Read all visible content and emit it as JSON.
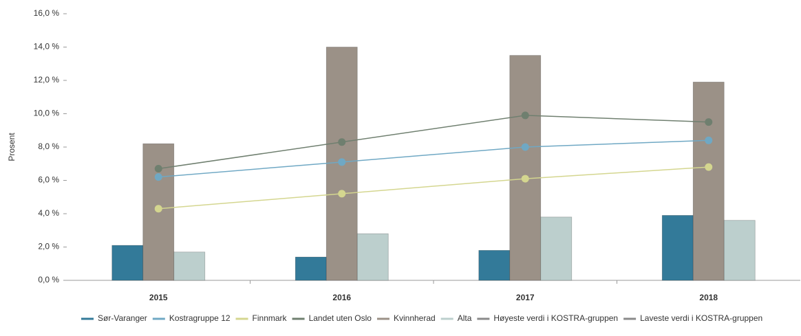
{
  "chart_data": {
    "type": "bar-line",
    "y_label": "Prosent",
    "categories": [
      "2015",
      "2016",
      "2017",
      "2018"
    ],
    "ylim": [
      0,
      16
    ],
    "yticks": [
      {
        "value": 0,
        "label": "0,0 %"
      },
      {
        "value": 2,
        "label": "2,0 %"
      },
      {
        "value": 4,
        "label": "4,0 %"
      },
      {
        "value": 6,
        "label": "6,0 %"
      },
      {
        "value": 8,
        "label": "8,0 %"
      },
      {
        "value": 10,
        "label": "10,0 %"
      },
      {
        "value": 12,
        "label": "12,0 %"
      },
      {
        "value": 14,
        "label": "14,0 %"
      },
      {
        "value": 16,
        "label": "16,0 %"
      }
    ],
    "grid": false,
    "series": [
      {
        "name": "Sør-Varanger",
        "kind": "bar",
        "color": "#337a99",
        "values": [
          2.1,
          1.4,
          1.8,
          3.9
        ]
      },
      {
        "name": "Kostragruppe 12",
        "kind": "line",
        "color": "#6fa8c4",
        "values": [
          6.2,
          7.1,
          8.0,
          8.4
        ]
      },
      {
        "name": "Finnmark",
        "kind": "line",
        "color": "#d4d68f",
        "values": [
          4.3,
          5.2,
          6.1,
          6.8
        ]
      },
      {
        "name": "Landet uten Oslo",
        "kind": "line",
        "color": "#6f7f6f",
        "values": [
          6.7,
          8.3,
          9.9,
          9.5
        ]
      },
      {
        "name": "Kvinnherad",
        "kind": "bar",
        "color": "#9b9187",
        "values": [
          8.2,
          14.0,
          13.5,
          11.9
        ]
      },
      {
        "name": "Alta",
        "kind": "bar",
        "color": "#bccfcd",
        "values": [
          1.7,
          2.8,
          3.8,
          3.6
        ]
      },
      {
        "name": "Høyeste verdi i KOSTRA-gruppen",
        "kind": "line",
        "color": "#8a8a8a",
        "values": [
          null,
          null,
          null,
          null
        ]
      },
      {
        "name": "Laveste verdi i KOSTRA-gruppen",
        "kind": "line",
        "color": "#8a8a8a",
        "values": [
          null,
          null,
          null,
          null
        ]
      }
    ]
  }
}
